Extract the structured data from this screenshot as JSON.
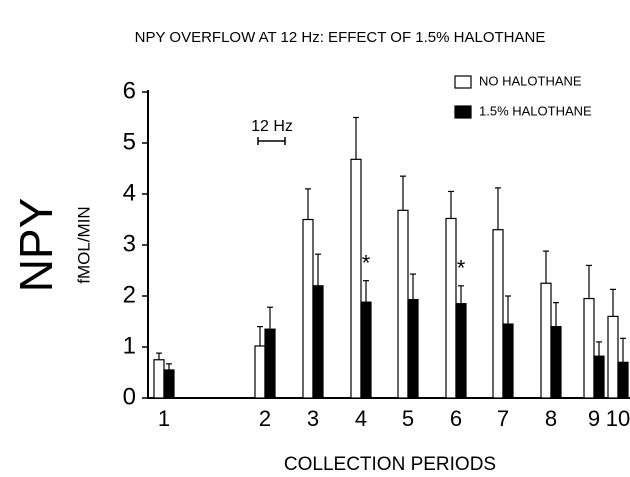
{
  "chart_data": {
    "type": "bar",
    "title": "NPY OVERFLOW AT 12 Hz: EFFECT OF 1.5% HALOTHANE",
    "y_label_main": "NPY",
    "y_label_unit": "fMOL/MIN",
    "x_label": "COLLECTION PERIODS",
    "stimulus_label": "12 Hz",
    "categories": [
      "1",
      "2",
      "3",
      "4",
      "5",
      "6",
      "7",
      "8",
      "9",
      "10"
    ],
    "series": [
      {
        "name": "NO HALOTHANE",
        "color": "#ffffff",
        "values": [
          0.75,
          1.02,
          3.5,
          4.68,
          3.68,
          3.52,
          3.3,
          2.25,
          1.95,
          1.6
        ],
        "errors": [
          0.13,
          0.38,
          0.6,
          0.82,
          0.67,
          0.53,
          0.82,
          0.63,
          0.65,
          0.53
        ]
      },
      {
        "name": "1.5% HALOTHANE",
        "color": "#000000",
        "values": [
          0.55,
          1.35,
          2.2,
          1.88,
          1.93,
          1.85,
          1.45,
          1.4,
          0.82,
          0.7
        ],
        "errors": [
          0.12,
          0.43,
          0.62,
          0.42,
          0.5,
          0.35,
          0.55,
          0.47,
          0.28,
          0.47
        ]
      }
    ],
    "annotations": [
      {
        "text": "*",
        "category": "4"
      },
      {
        "text": "*",
        "category": "6"
      }
    ],
    "ylim": [
      0,
      6
    ],
    "yticks": [
      0,
      1,
      2,
      3,
      4,
      5,
      6
    ],
    "legend": "top-right"
  }
}
